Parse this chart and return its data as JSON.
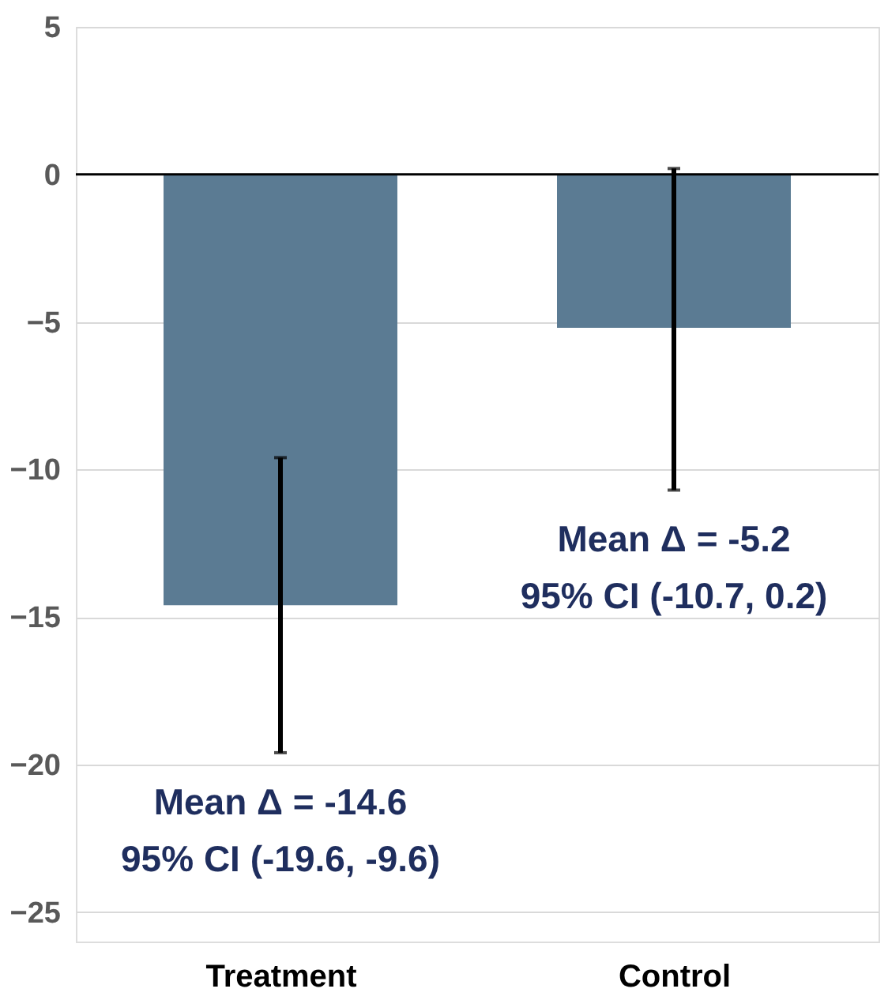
{
  "chart_data": {
    "type": "bar",
    "categories": [
      "Treatment",
      "Control"
    ],
    "values": [
      -14.6,
      -5.2
    ],
    "color": "#5b7b93",
    "errors": [
      [
        -19.6,
        -9.6
      ],
      [
        -10.7,
        0.2
      ]
    ],
    "ylim": [
      -26,
      5
    ],
    "yticks": [
      5,
      0,
      -5,
      -10,
      -15,
      -20,
      -25
    ],
    "grid": "y",
    "ref_lines": [
      {
        "axis": "y",
        "value": 0,
        "color": "#000000"
      }
    ],
    "annotations": [
      "Mean Δ = -14.6",
      "95% CI (-19.6, -9.6)",
      "Mean Δ = -5.2",
      "95% CI (-10.7, 0.2)"
    ]
  }
}
